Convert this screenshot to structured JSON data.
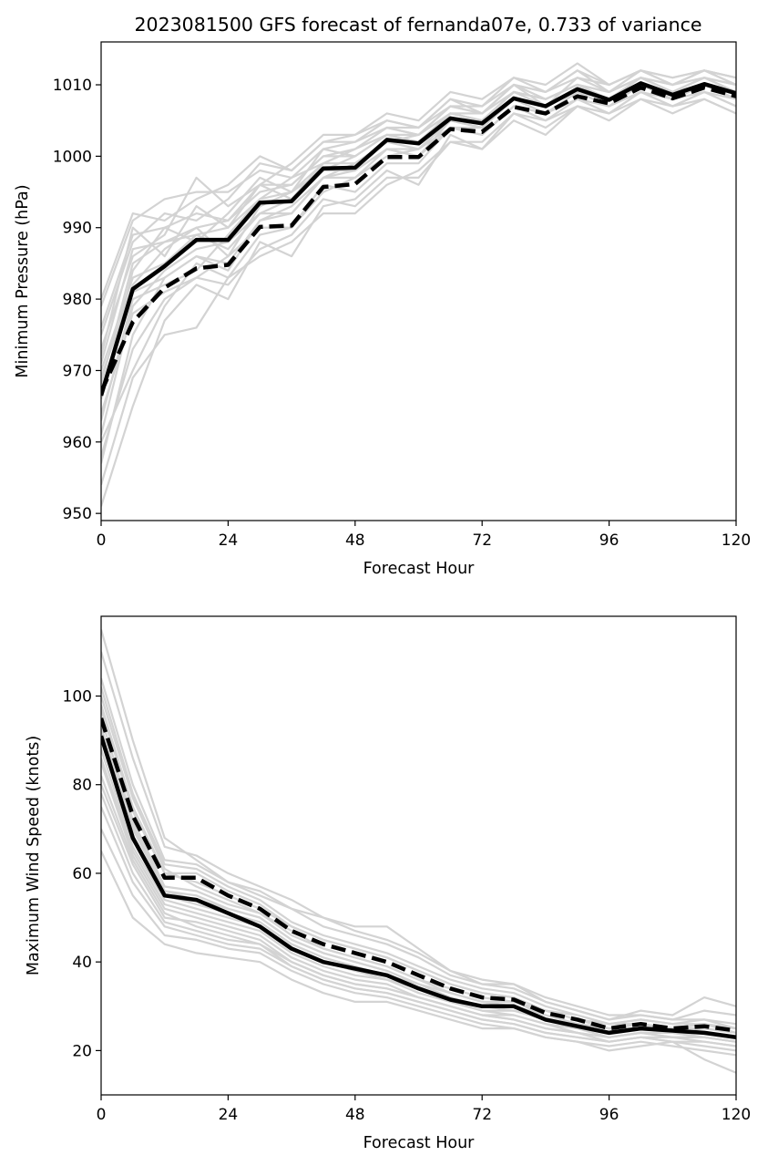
{
  "title": "2023081500 GFS forecast of fernanda07e, 0.733 of variance",
  "colors": {
    "ensemble": "#d3d3d3",
    "mean": "#000000",
    "frame": "#000000"
  },
  "chart_data": [
    {
      "type": "line",
      "xlabel": "Forecast Hour",
      "ylabel": "Minimum Pressure (hPa)",
      "xlim": [
        0,
        120
      ],
      "ylim": [
        949,
        1016
      ],
      "xticks": [
        "0",
        "24",
        "48",
        "72",
        "96",
        "120"
      ],
      "yticks": [
        "950",
        "960",
        "970",
        "980",
        "990",
        "1000",
        "1010"
      ],
      "x": [
        0,
        6,
        12,
        18,
        24,
        30,
        36,
        42,
        48,
        54,
        60,
        66,
        72,
        78,
        84,
        90,
        96,
        102,
        108,
        114,
        120
      ],
      "series": [
        {
          "style": "solid",
          "values": [
            966.5,
            981.4,
            984.6,
            988.3,
            988.3,
            993.5,
            993.7,
            998.3,
            998.4,
            1002.3,
            1001.8,
            1005.3,
            1004.6,
            1008.1,
            1007.0,
            1009.4,
            1007.9,
            1010.2,
            1008.6,
            1010.1,
            1008.8
          ]
        },
        {
          "style": "dashed",
          "values": [
            967.0,
            976.8,
            981.6,
            984.3,
            984.8,
            990.1,
            990.3,
            995.7,
            996.1,
            999.9,
            999.9,
            1003.8,
            1003.4,
            1006.9,
            1006.0,
            1008.4,
            1007.4,
            1009.6,
            1008.1,
            1009.6,
            1008.4
          ]
        }
      ],
      "ensemble": [
        [
          968,
          985,
          988,
          990,
          991,
          995,
          996,
          1000,
          1000,
          1003,
          1002,
          1006,
          1005,
          1009,
          1008,
          1010,
          1008,
          1011,
          1009,
          1011,
          1009
        ],
        [
          972,
          990,
          986,
          993,
          990,
          996,
          994,
          999,
          1001,
          1004,
          1003,
          1007,
          1006,
          1010,
          1007,
          1011,
          1009,
          1011,
          1010,
          1012,
          1010
        ],
        [
          960,
          970,
          979,
          985,
          983,
          989,
          990,
          995,
          997,
          1000,
          1001,
          1004,
          1003,
          1007,
          1005,
          1008,
          1006,
          1009,
          1007,
          1009,
          1007
        ],
        [
          975,
          988,
          992,
          991,
          994,
          999,
          998,
          1002,
          1002,
          1005,
          1004,
          1008,
          1006,
          1010,
          1009,
          1011,
          1010,
          1012,
          1010,
          1012,
          1011
        ],
        [
          957,
          975,
          983,
          986,
          985,
          991,
          993,
          997,
          997,
          1001,
          1000,
          1005,
          1004,
          1008,
          1006,
          1009,
          1007,
          1010,
          1008,
          1010,
          1008
        ],
        [
          970,
          983,
          985,
          989,
          987,
          992,
          992,
          997,
          999,
          1002,
          1001,
          1005,
          1004,
          1008,
          1007,
          1009,
          1008,
          1010,
          1009,
          1010,
          1009
        ],
        [
          963,
          980,
          982,
          984,
          989,
          994,
          995,
          999,
          999,
          1002,
          1003,
          1006,
          1005,
          1009,
          1008,
          1010,
          1008,
          1011,
          1009,
          1011,
          1009
        ],
        [
          979,
          991,
          994,
          995,
          995,
          998,
          997,
          1001,
          1002,
          1004,
          1004,
          1007,
          1007,
          1010,
          1009,
          1012,
          1010,
          1012,
          1011,
          1012,
          1010
        ],
        [
          951,
          965,
          977,
          982,
          980,
          988,
          986,
          993,
          994,
          998,
          996,
          1003,
          1001,
          1005,
          1003,
          1007,
          1005,
          1008,
          1006,
          1008,
          1006
        ],
        [
          966,
          984,
          990,
          988,
          992,
          997,
          995,
          1001,
          1000,
          1003,
          1002,
          1006,
          1005,
          1009,
          1008,
          1010,
          1009,
          1011,
          1009,
          1011,
          1010
        ],
        [
          973,
          986,
          989,
          997,
          993,
          996,
          999,
          1003,
          1003,
          1006,
          1005,
          1009,
          1008,
          1011,
          1010,
          1013,
          1010,
          1012,
          1011,
          1012,
          1011
        ],
        [
          961,
          979,
          984,
          987,
          988,
          992,
          994,
          998,
          998,
          1001,
          1001,
          1005,
          1004,
          1008,
          1006,
          1009,
          1008,
          1010,
          1008,
          1010,
          1008
        ],
        [
          976,
          989,
          990,
          992,
          991,
          996,
          996,
          1000,
          1001,
          1003,
          1003,
          1006,
          1006,
          1009,
          1008,
          1010,
          1009,
          1011,
          1010,
          1011,
          1009
        ],
        [
          954,
          969,
          975,
          976,
          983,
          986,
          988,
          992,
          992,
          996,
          998,
          1002,
          1002,
          1006,
          1005,
          1007,
          1006,
          1009,
          1007,
          1009,
          1007
        ],
        [
          969,
          982,
          987,
          990,
          986,
          993,
          995,
          998,
          1000,
          1003,
          1002,
          1006,
          1005,
          1009,
          1007,
          1009,
          1008,
          1010,
          1009,
          1010,
          1009
        ],
        [
          964,
          978,
          981,
          983,
          986,
          990,
          990,
          996,
          995,
          999,
          999,
          1004,
          1003,
          1007,
          1006,
          1008,
          1007,
          1009,
          1008,
          1009,
          1008
        ],
        [
          980,
          992,
          991,
          994,
          996,
          1000,
          998,
          1002,
          1003,
          1005,
          1004,
          1008,
          1007,
          1011,
          1009,
          1012,
          1009,
          1012,
          1010,
          1012,
          1011
        ],
        [
          958,
          973,
          980,
          983,
          982,
          987,
          989,
          994,
          993,
          997,
          997,
          1002,
          1001,
          1006,
          1004,
          1007,
          1006,
          1008,
          1007,
          1008,
          1006
        ],
        [
          971,
          987,
          988,
          989,
          990,
          994,
          997,
          999,
          1001,
          1004,
          1003,
          1007,
          1006,
          1010,
          1008,
          1010,
          1009,
          1011,
          1009,
          1011,
          1010
        ],
        [
          967,
          981,
          983,
          986,
          984,
          991,
          992,
          997,
          998,
          1001,
          1000,
          1004,
          1004,
          1008,
          1006,
          1009,
          1007,
          1010,
          1008,
          1010,
          1008
        ]
      ]
    },
    {
      "type": "line",
      "xlabel": "Forecast Hour",
      "ylabel": "Maximum Wind Speed (knots)",
      "xlim": [
        0,
        120
      ],
      "ylim": [
        10,
        118
      ],
      "xticks": [
        "0",
        "24",
        "48",
        "72",
        "96",
        "120"
      ],
      "yticks": [
        "20",
        "40",
        "60",
        "80",
        "100"
      ],
      "x": [
        0,
        6,
        12,
        18,
        24,
        30,
        36,
        42,
        48,
        54,
        60,
        66,
        72,
        78,
        84,
        90,
        96,
        102,
        108,
        114,
        120
      ],
      "series": [
        {
          "style": "solid",
          "values": [
            91,
            68,
            55,
            54,
            51,
            48,
            43,
            40,
            38.5,
            37,
            34,
            31.5,
            30,
            30,
            27,
            25.5,
            24,
            25,
            24.5,
            24,
            23
          ]
        },
        {
          "style": "dashed",
          "values": [
            95,
            73,
            59,
            59,
            55,
            52,
            47,
            44,
            42,
            40,
            37,
            34,
            32,
            31.5,
            28.5,
            27,
            25,
            26,
            25,
            25.5,
            24.5
          ]
        }
      ],
      "ensemble": [
        [
          98,
          75,
          60,
          60,
          56,
          53,
          48,
          45,
          43,
          41,
          38,
          35,
          33,
          32,
          29,
          28,
          26,
          27,
          26,
          26,
          25
        ],
        [
          85,
          64,
          52,
          50,
          48,
          46,
          41,
          38,
          36,
          35,
          32,
          30,
          28,
          28,
          26,
          24,
          23,
          24,
          23,
          23,
          22
        ],
        [
          104,
          80,
          63,
          62,
          58,
          56,
          52,
          48,
          46,
          44,
          41,
          37,
          35,
          34,
          31,
          29,
          27,
          28,
          27,
          27,
          26
        ],
        [
          75,
          58,
          48,
          46,
          44,
          43,
          39,
          36,
          34,
          33,
          31,
          29,
          27,
          26,
          24,
          23,
          22,
          23,
          22,
          22,
          21
        ],
        [
          110,
          86,
          66,
          64,
          60,
          57,
          54,
          50,
          48,
          48,
          43,
          38,
          36,
          35,
          32,
          30,
          28,
          28,
          27,
          29,
          28
        ],
        [
          92,
          70,
          56,
          55,
          52,
          50,
          45,
          42,
          40,
          38,
          35,
          33,
          31,
          31,
          28,
          26,
          25,
          26,
          25,
          25,
          24
        ],
        [
          80,
          62,
          50,
          49,
          47,
          45,
          40,
          37,
          35,
          34,
          32,
          30,
          28,
          27,
          25,
          24,
          23,
          24,
          23,
          23,
          22
        ],
        [
          100,
          77,
          61,
          57,
          54,
          51,
          47,
          43,
          41,
          39,
          36,
          34,
          32,
          31,
          29,
          27,
          25,
          26,
          25,
          26,
          24
        ],
        [
          70,
          55,
          46,
          45,
          43,
          42,
          38,
          35,
          33,
          32,
          30,
          28,
          26,
          25,
          23,
          22,
          21,
          22,
          21,
          20,
          19
        ],
        [
          95,
          72,
          57,
          56,
          53,
          51,
          46,
          43,
          41,
          39,
          36,
          33,
          31,
          30,
          28,
          26,
          25,
          25,
          24,
          24,
          23
        ],
        [
          88,
          66,
          54,
          52,
          50,
          48,
          43,
          40,
          38,
          36,
          34,
          31,
          29,
          29,
          27,
          25,
          24,
          25,
          24,
          24,
          23
        ],
        [
          115,
          90,
          68,
          63,
          58,
          55,
          52,
          50,
          47,
          45,
          42,
          38,
          35,
          35,
          31,
          29,
          27,
          29,
          28,
          32,
          30
        ],
        [
          65,
          50,
          44,
          42,
          41,
          40,
          36,
          33,
          31,
          31,
          29,
          27,
          25,
          25,
          23,
          22,
          20,
          21,
          22,
          18,
          15
        ],
        [
          90,
          68,
          55,
          53,
          51,
          49,
          44,
          41,
          39,
          37,
          35,
          32,
          30,
          29,
          27,
          25,
          24,
          25,
          24,
          23,
          22
        ],
        [
          97,
          74,
          60,
          58,
          55,
          52,
          48,
          45,
          43,
          41,
          38,
          35,
          33,
          32,
          29,
          27,
          26,
          26,
          25,
          26,
          25
        ],
        [
          82,
          63,
          51,
          48,
          46,
          44,
          40,
          37,
          35,
          34,
          32,
          30,
          28,
          27,
          25,
          24,
          22,
          23,
          23,
          22,
          21
        ],
        [
          102,
          78,
          62,
          61,
          57,
          54,
          49,
          46,
          44,
          42,
          39,
          36,
          34,
          33,
          30,
          28,
          26,
          27,
          26,
          27,
          25
        ],
        [
          78,
          60,
          49,
          47,
          45,
          44,
          39,
          36,
          34,
          33,
          31,
          29,
          27,
          26,
          24,
          23,
          22,
          23,
          22,
          21,
          20
        ],
        [
          93,
          71,
          56,
          54,
          52,
          50,
          45,
          42,
          40,
          38,
          35,
          33,
          31,
          30,
          28,
          26,
          25,
          26,
          24,
          25,
          24
        ],
        [
          86,
          65,
          53,
          51,
          49,
          47,
          42,
          39,
          37,
          36,
          33,
          31,
          29,
          28,
          26,
          25,
          23,
          24,
          24,
          23,
          22
        ]
      ]
    }
  ]
}
